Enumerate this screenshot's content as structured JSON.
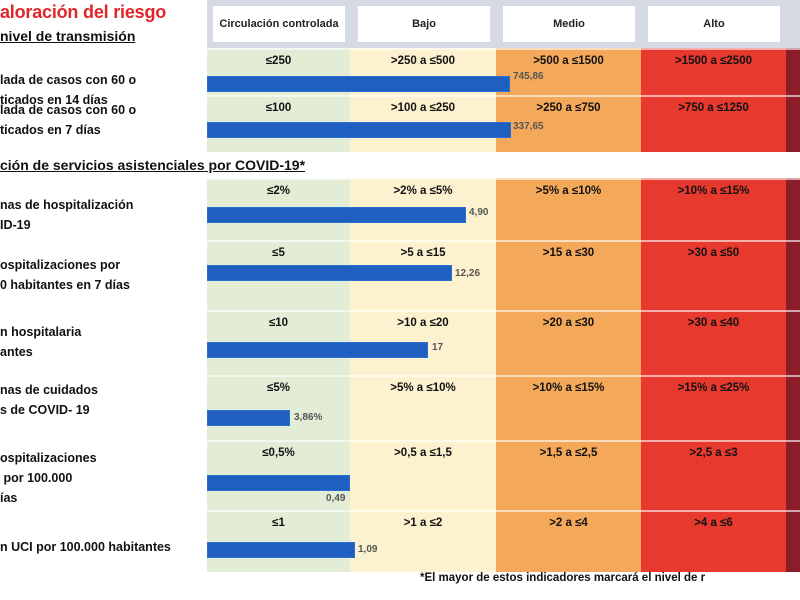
{
  "title": "aloración del riesgo",
  "section1": "nivel de transmisión",
  "section2": "ción de servicios  asistenciales por COVID-19*",
  "levels": [
    "Circulación controlada",
    "Bajo",
    "Medio",
    "Alto"
  ],
  "colors": {
    "controlada": "#e3edd6",
    "bajo": "#fdf2cf",
    "medio": "#f4a95a",
    "alto": "#e8392f",
    "extremo": "#8b1c2a",
    "bar": "#1f5fbf",
    "title": "#e0262a"
  },
  "rows": [
    {
      "label": "lada de casos con 60 o\nticados en 14 días",
      "thresholds": [
        "≤250",
        ">250 a ≤500",
        ">500 a ≤1500",
        ">1500 a ≤2500"
      ],
      "value": "745,86"
    },
    {
      "label": "lada de casos con 60 o\nticados en 7 días",
      "thresholds": [
        "≤100",
        ">100 a ≤250",
        ">250 a ≤750",
        ">750 a ≤1250"
      ],
      "value": "337,65"
    },
    {
      "label": "nas de hospitalización\nID-19",
      "thresholds": [
        "≤2%",
        ">2% a ≤5%",
        ">5% a ≤10%",
        ">10% a ≤15%"
      ],
      "value": "4,90"
    },
    {
      "label": "ospitalizaciones por\n0 habitantes en 7 días",
      "thresholds": [
        "≤5",
        ">5 a ≤15",
        ">15 a ≤30",
        ">30 a ≤50"
      ],
      "value": "12,26"
    },
    {
      "label": "n hospitalaria\nantes",
      "thresholds": [
        "≤10",
        ">10 a ≤20",
        ">20 a ≤30",
        ">30 a ≤40"
      ],
      "value": "17"
    },
    {
      "label": "nas de cuidados\ns de COVID- 19",
      "thresholds": [
        "≤5%",
        ">5% a ≤10%",
        ">10% a ≤15%",
        ">15% a ≤25%"
      ],
      "value": "3,86%"
    },
    {
      "label": "ospitalizaciones\n por 100.000\nías",
      "thresholds": [
        "≤0,5%",
        ">0,5 a ≤1,5",
        ">1,5 a ≤2,5",
        ">2,5 a ≤3"
      ],
      "value": "0,49"
    },
    {
      "label": "n UCI por 100.000 habitantes",
      "thresholds": [
        "≤1",
        ">1 a ≤2",
        ">2 a ≤4",
        ">4 a ≤6"
      ],
      "value": "1,09"
    }
  ],
  "footnote": "*El mayor de estos indicadores marcará el nivel de r"
}
